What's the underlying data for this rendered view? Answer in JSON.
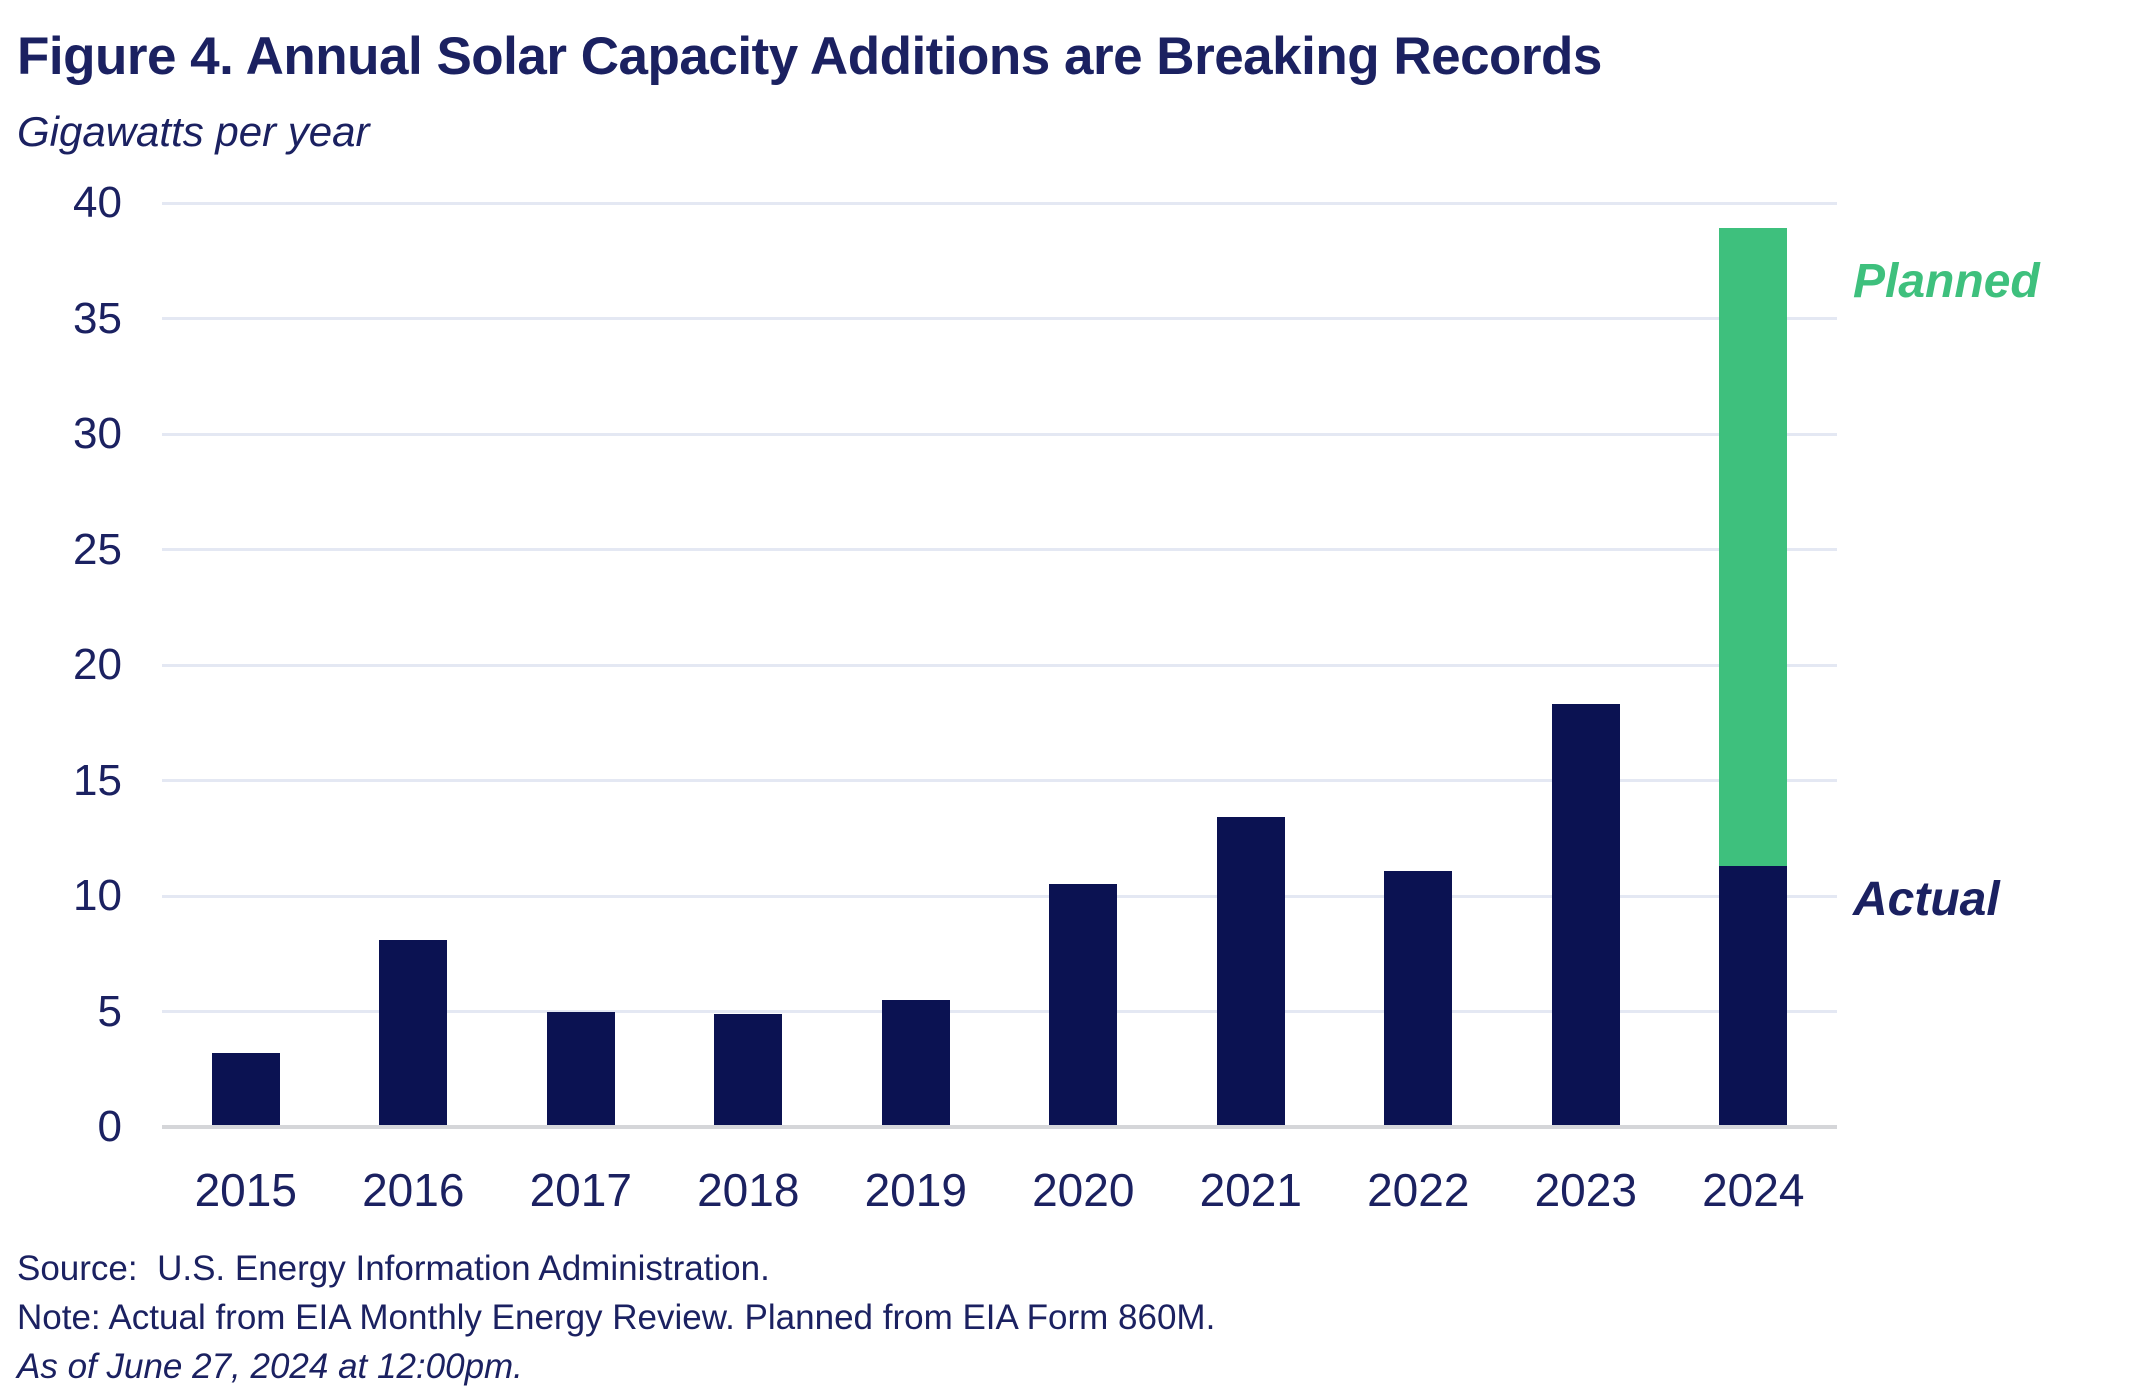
{
  "title": "Figure 4. Annual Solar Capacity Additions are Breaking Records",
  "subtitle": "Gigawatts per year",
  "annotations": {
    "planned_label": "Planned",
    "actual_label": "Actual"
  },
  "footer": {
    "source": "Source:  U.S. Energy Information Administration.",
    "note": "Note: Actual from EIA Monthly Energy Review. Planned from EIA Form 860M.",
    "as_of": "As of June 27, 2024 at 12:00pm."
  },
  "colors": {
    "actual": "#0b1252",
    "planned": "#3ec07d",
    "text": "#1b2161",
    "gridline": "#e4e8f3",
    "axisline": "#d5d6d9",
    "background": "#ffffff"
  },
  "chart_data": {
    "type": "bar",
    "stacked": true,
    "title": "Figure 4. Annual Solar Capacity Additions are Breaking Records",
    "subtitle_unit": "Gigawatts per year",
    "categories": [
      "2015",
      "2016",
      "2017",
      "2018",
      "2019",
      "2020",
      "2021",
      "2022",
      "2023",
      "2024"
    ],
    "series": [
      {
        "name": "Actual",
        "color_key": "actual",
        "values": [
          3.2,
          8.1,
          5.0,
          4.9,
          5.5,
          10.5,
          13.4,
          11.1,
          18.3,
          11.3
        ]
      },
      {
        "name": "Planned",
        "color_key": "planned",
        "values": [
          0,
          0,
          0,
          0,
          0,
          0,
          0,
          0,
          0,
          27.6
        ]
      }
    ],
    "totals": [
      3.2,
      8.1,
      5.0,
      4.9,
      5.5,
      10.5,
      13.4,
      11.1,
      18.3,
      38.9
    ],
    "xlabel": "",
    "ylabel": "Gigawatts per year",
    "ylim": [
      0,
      40
    ],
    "ytick_step": 5,
    "yticks": [
      0,
      5,
      10,
      15,
      20,
      25,
      30,
      35,
      40
    ],
    "grid": true,
    "legend_position": "right-inline-annotations"
  }
}
